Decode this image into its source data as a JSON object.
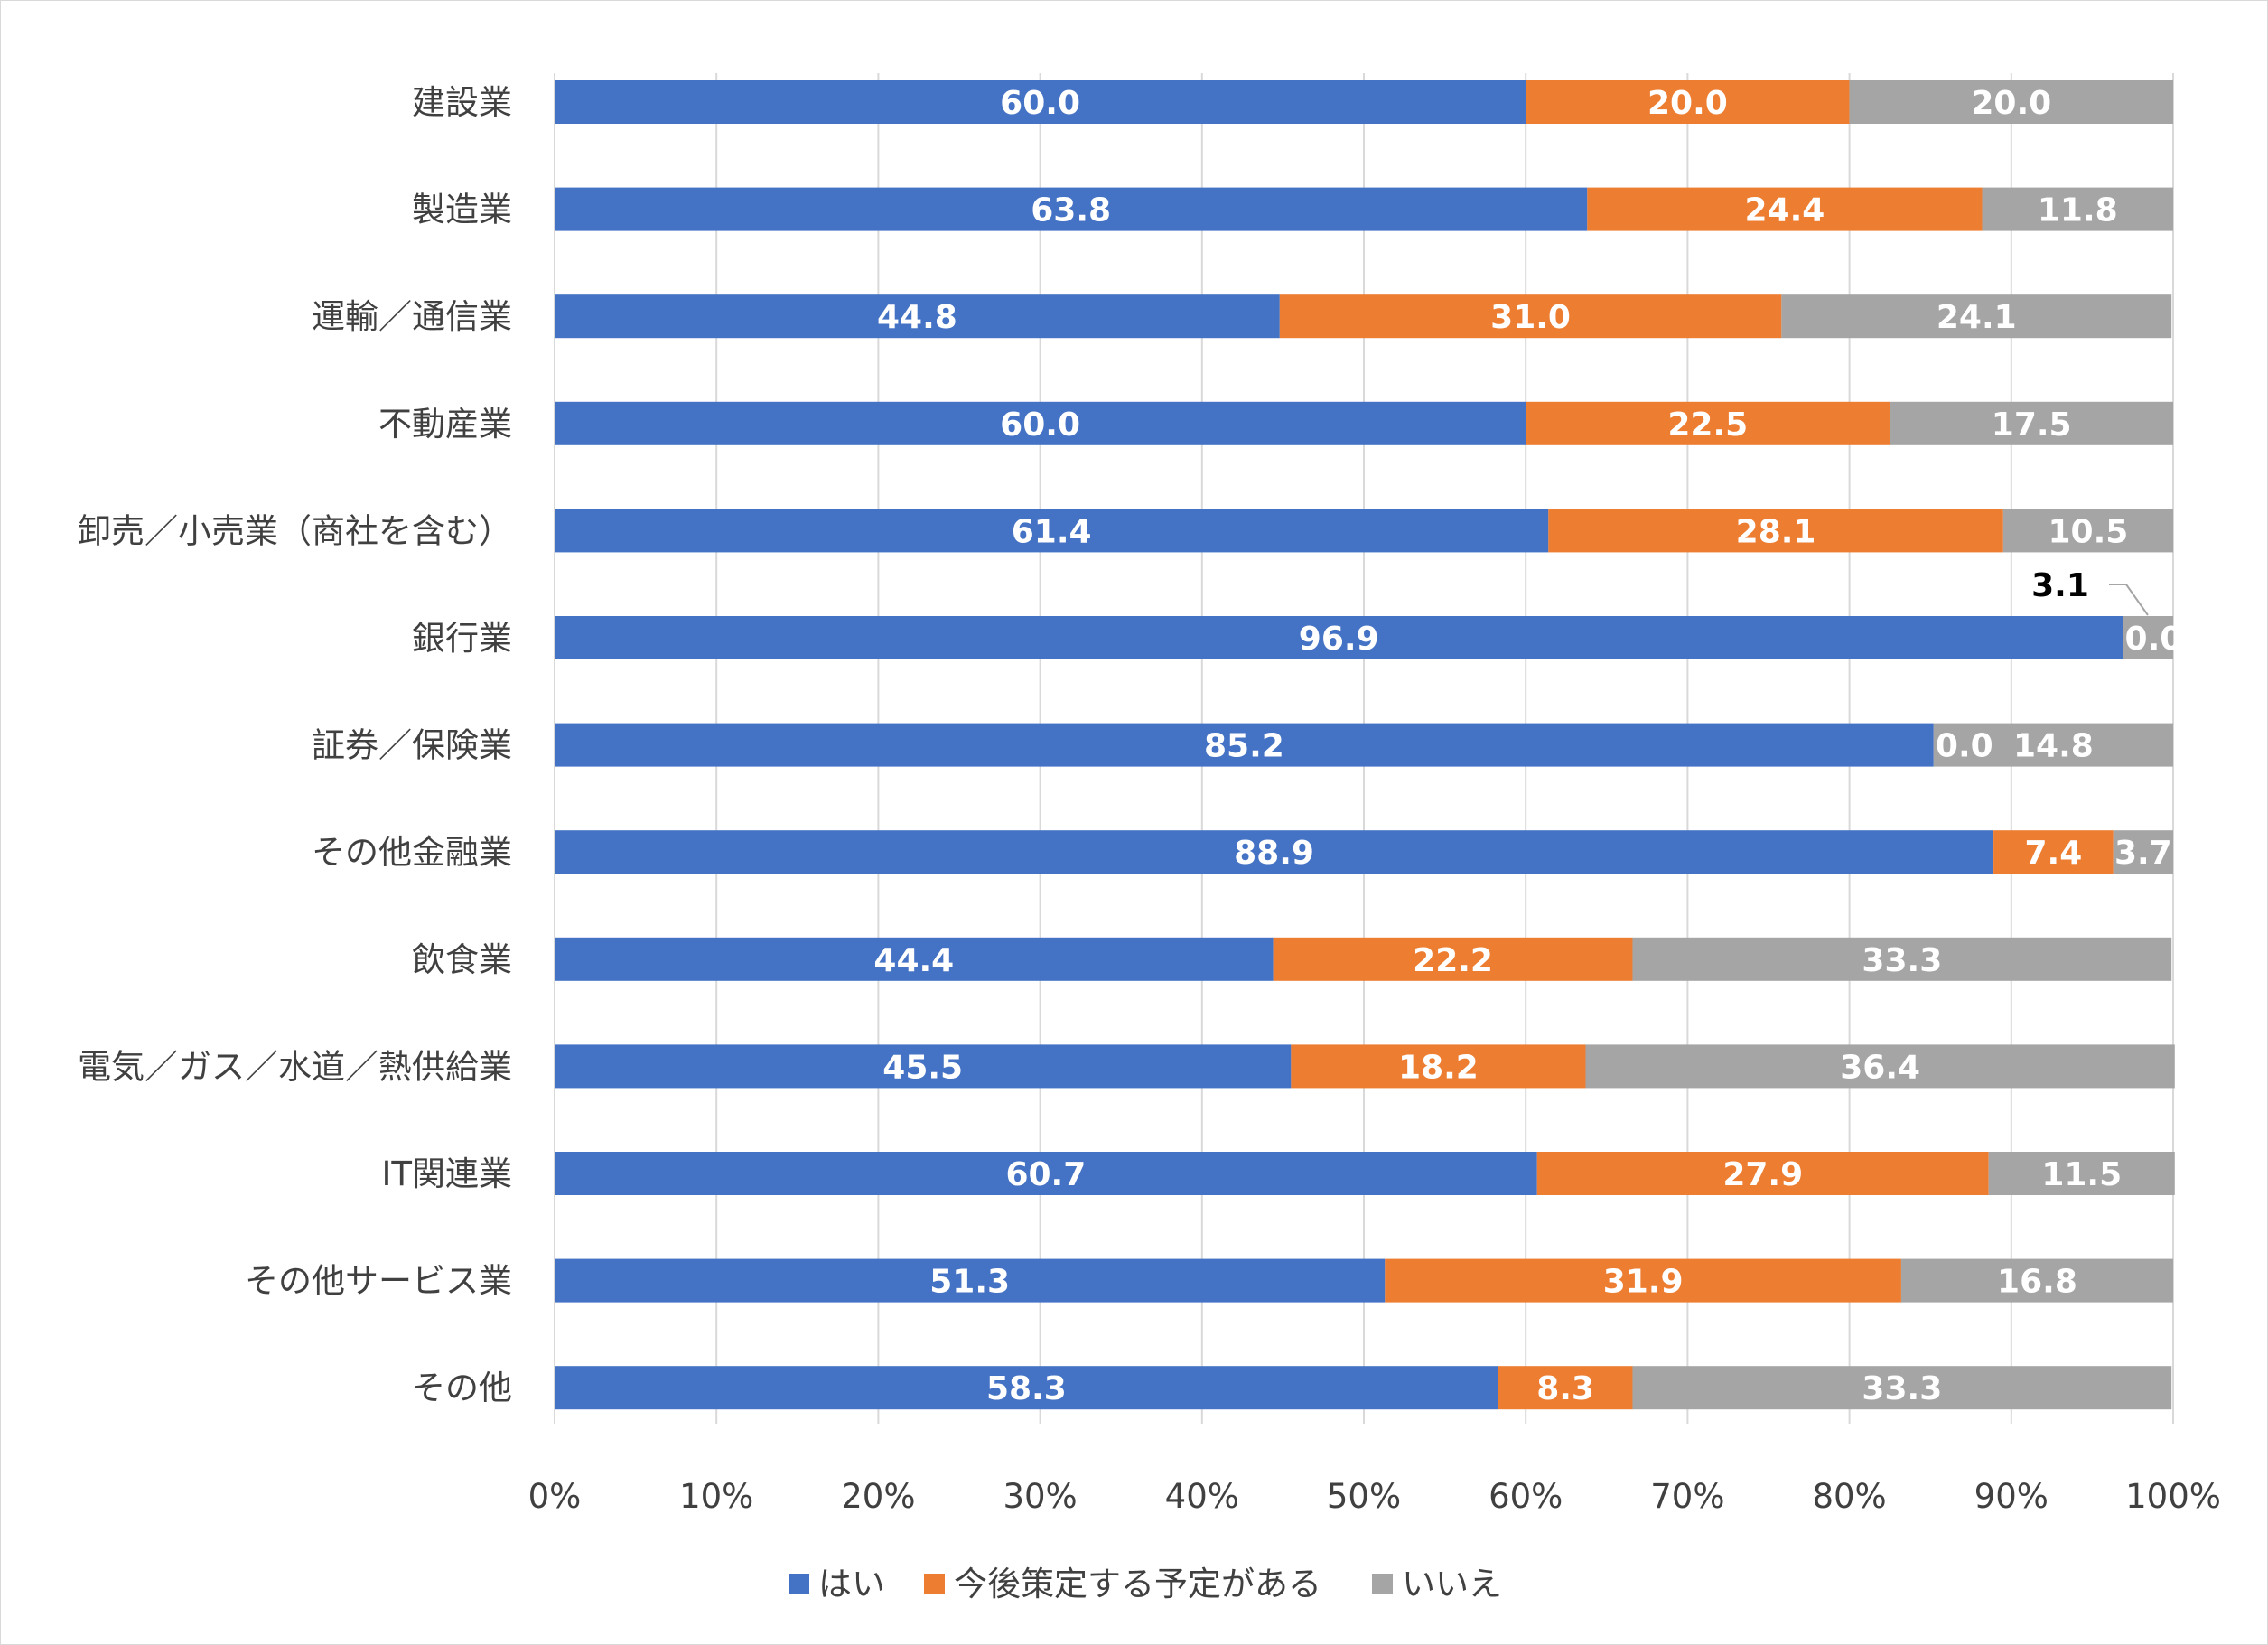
{
  "chart_data": {
    "type": "bar",
    "orientation": "horizontal",
    "stacked": "percent",
    "title": "",
    "xlabel": "",
    "ylabel": "",
    "xlim": [
      0,
      100
    ],
    "x_ticks": [
      "0%",
      "10%",
      "20%",
      "30%",
      "40%",
      "50%",
      "60%",
      "70%",
      "80%",
      "90%",
      "100%"
    ],
    "grid": "vertical",
    "legend_position": "bottom",
    "categories": [
      "建設業",
      "製造業",
      "運輸／通信業",
      "不動産業",
      "卸売／小売業（商社を含む）",
      "銀行業",
      "証券／保険業",
      "その他金融業",
      "飲食業",
      "電気／ガス／水道／熱供給業",
      "IT関連業",
      "その他サービス業",
      "その他"
    ],
    "series": [
      {
        "name": "はい",
        "color": "#4472c4",
        "values": [
          60.0,
          63.8,
          44.8,
          60.0,
          61.4,
          96.9,
          85.2,
          88.9,
          44.4,
          45.5,
          60.7,
          51.3,
          58.3
        ],
        "labels": [
          "60.0",
          "63.8",
          "44.8",
          "60.0",
          "61.4",
          "96.9",
          "85.2",
          "88.9",
          "44.4",
          "45.5",
          "60.7",
          "51.3",
          "58.3"
        ]
      },
      {
        "name": "今後策定する予定がある",
        "color": "#ed7d31",
        "values": [
          20.0,
          24.4,
          31.0,
          22.5,
          28.1,
          0.0,
          0.0,
          7.4,
          22.2,
          18.2,
          27.9,
          31.9,
          8.3
        ],
        "labels": [
          "20.0",
          "24.4",
          "31.0",
          "22.5",
          "28.1",
          "0.0",
          "0.0",
          "7.4",
          "22.2",
          "18.2",
          "27.9",
          "31.9",
          "8.3"
        ]
      },
      {
        "name": "いいえ",
        "color": "#a5a5a5",
        "values": [
          20.0,
          11.8,
          24.1,
          17.5,
          10.5,
          3.1,
          14.8,
          3.7,
          33.3,
          36.4,
          11.5,
          16.8,
          33.3
        ],
        "labels": [
          "20.0",
          "11.8",
          "24.1",
          "17.5",
          "10.5",
          "3.1",
          "14.8",
          "3.7",
          "33.3",
          "36.4",
          "11.5",
          "16.8",
          "33.3"
        ]
      }
    ]
  }
}
